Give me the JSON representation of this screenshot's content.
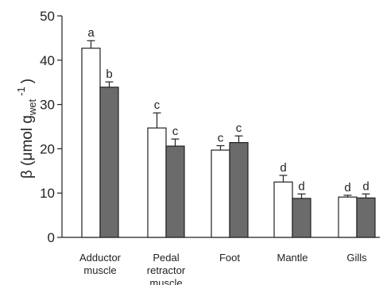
{
  "chart_data": {
    "type": "bar",
    "title": "",
    "xlabel": "",
    "ylabel": {
      "prefix": "β (μmol g",
      "subscript": "wet",
      "superscript": "-1",
      "suffix": ")"
    },
    "ylim": [
      0,
      50
    ],
    "yticks": [
      0,
      10,
      20,
      30,
      40,
      50
    ],
    "grid": false,
    "legend": "none",
    "categories": [
      [
        "Adductor",
        "muscle"
      ],
      [
        "Pedal",
        "retractor",
        "muscle"
      ],
      [
        "Foot"
      ],
      [
        "Mantle"
      ],
      [
        "Gills"
      ]
    ],
    "series": [
      {
        "color": "#ffffff",
        "values": [
          42.7,
          24.7,
          19.7,
          12.5,
          9.1
        ],
        "errors": [
          1.7,
          3.4,
          1.0,
          1.5,
          0.4
        ],
        "labels": [
          "a",
          "c",
          "c",
          "d",
          "d"
        ]
      },
      {
        "color": "#6b6b6b",
        "values": [
          33.9,
          20.6,
          21.4,
          8.8,
          8.9
        ],
        "errors": [
          1.2,
          1.6,
          1.5,
          1.0,
          0.9
        ],
        "labels": [
          "b",
          "c",
          "c",
          "d",
          "d"
        ]
      }
    ]
  }
}
